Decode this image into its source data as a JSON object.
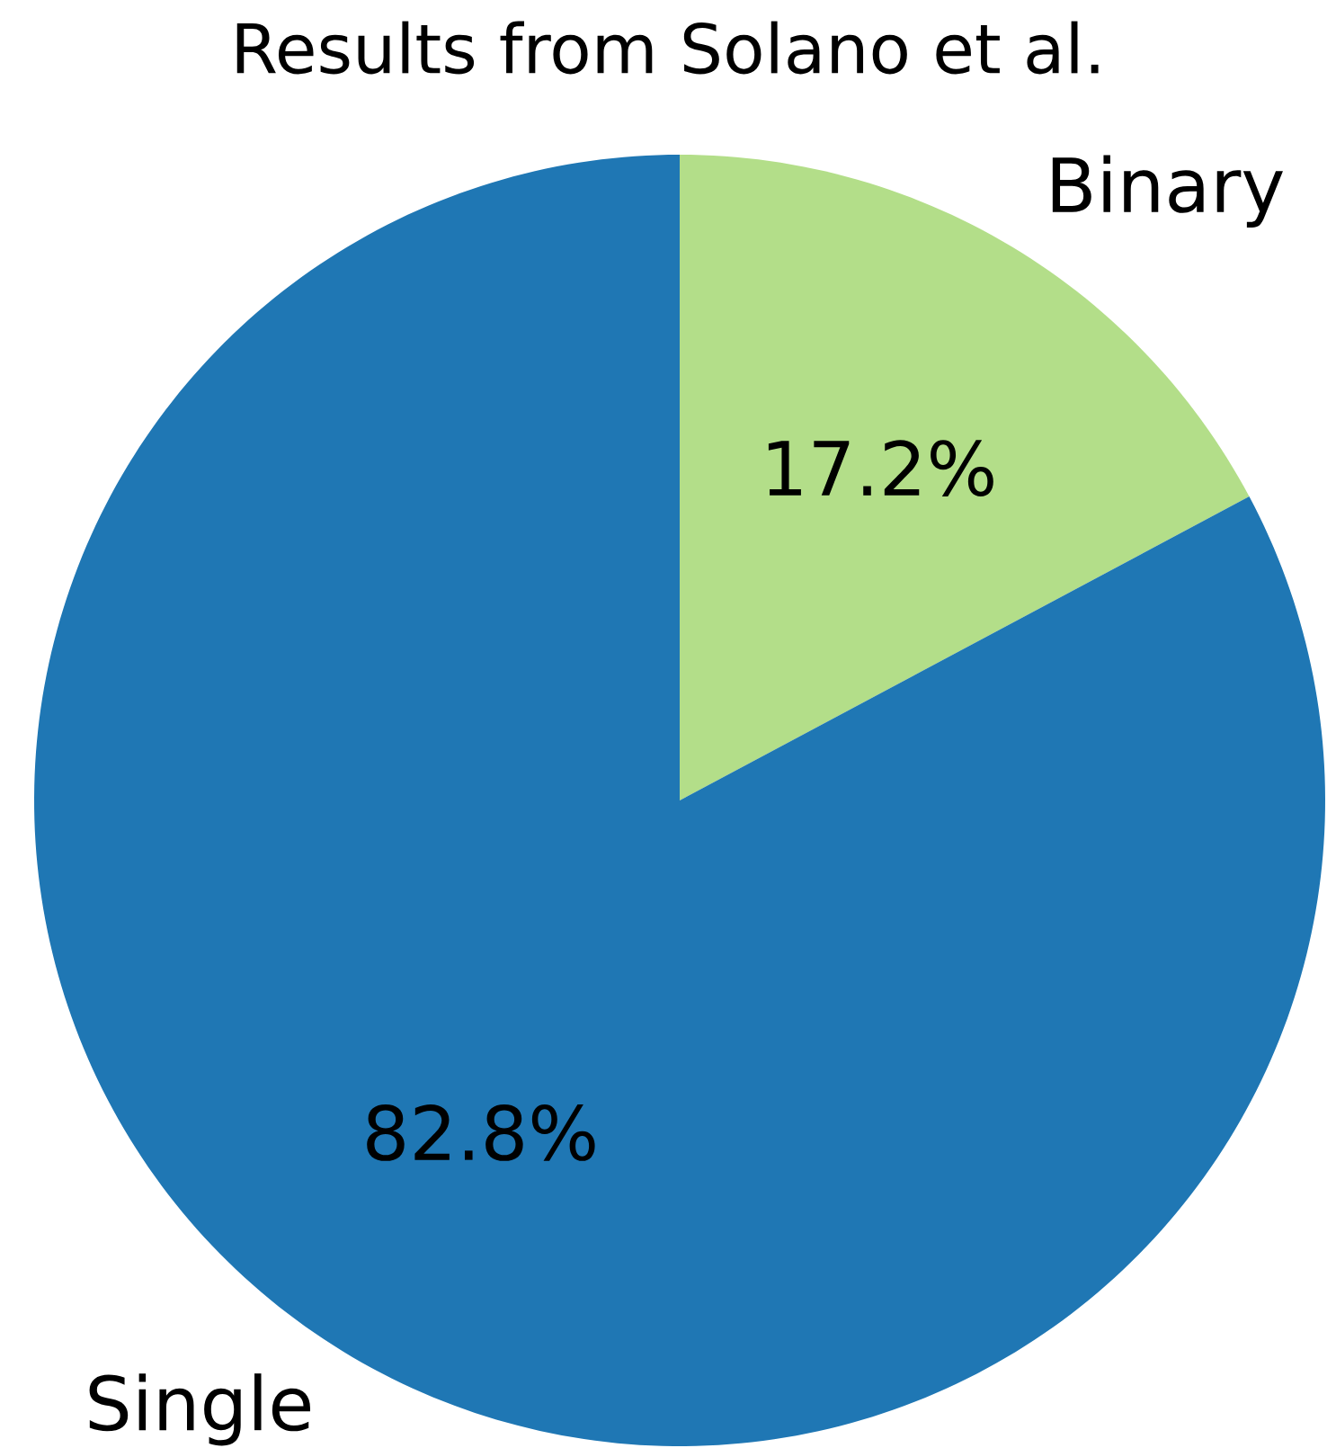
{
  "chart_data": {
    "type": "pie",
    "title": "Results from Solano et al.",
    "categories": [
      "Binary",
      "Single"
    ],
    "values": [
      17.2,
      82.8
    ],
    "colors": [
      "#b3de89",
      "#1f77b4"
    ],
    "value_labels": [
      "17.2%",
      "82.8%"
    ]
  }
}
